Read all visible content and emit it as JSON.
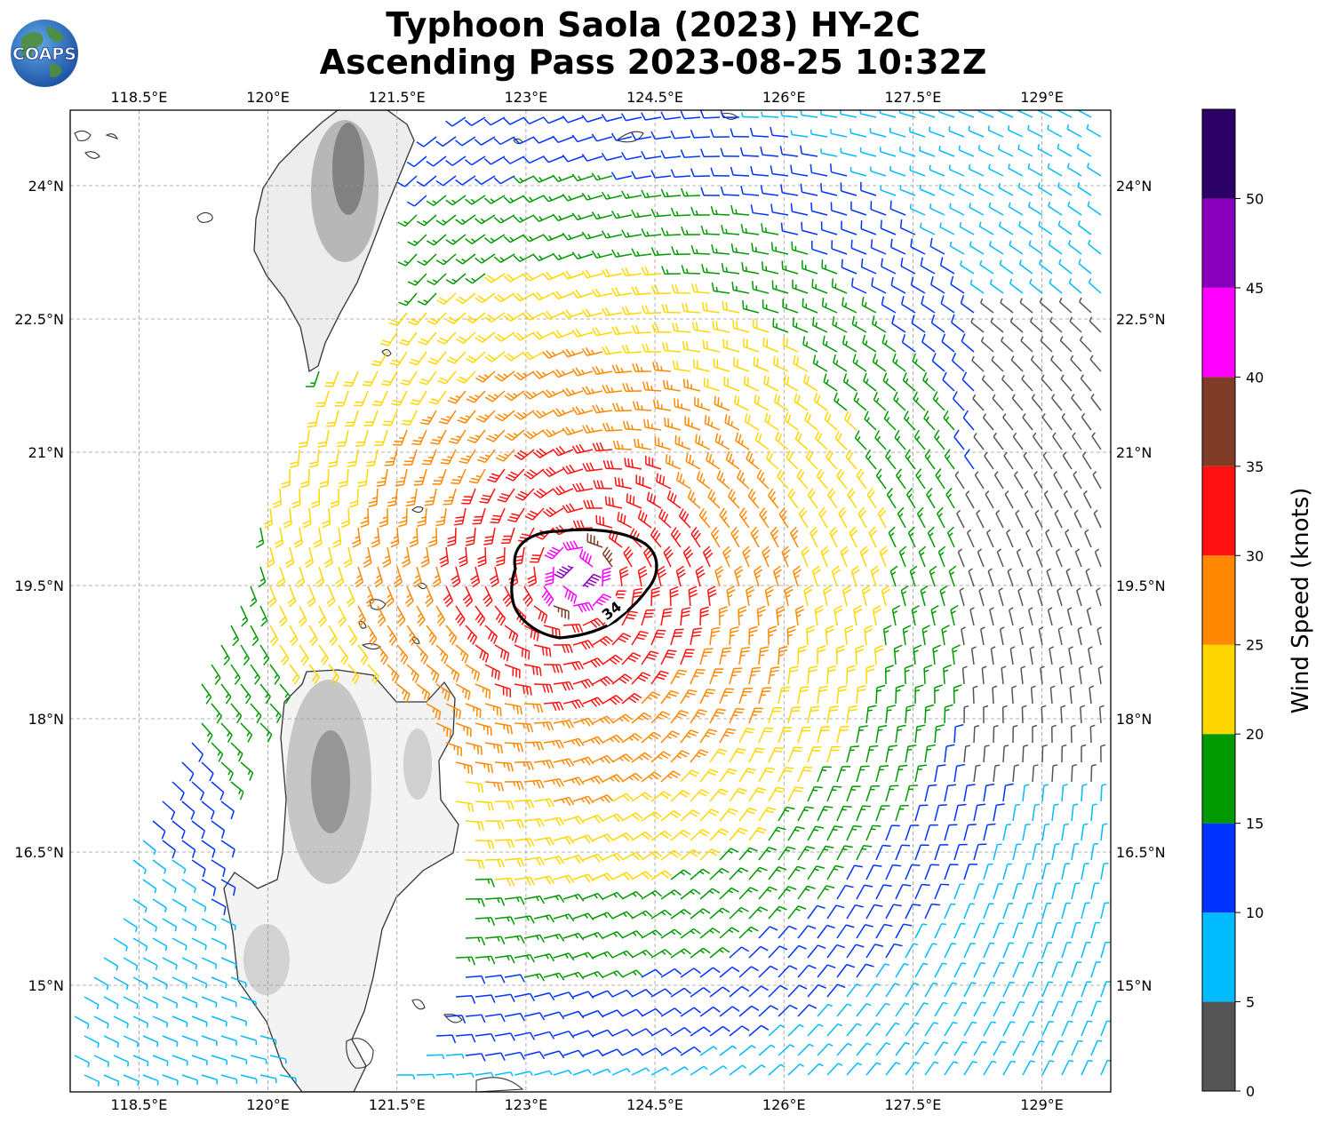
{
  "title": {
    "line1": "Typhoon Saola (2023) HY-2C",
    "line2": "Ascending Pass 2023-08-25 10:32Z"
  },
  "logo": {
    "text": "COAPS",
    "icon": "globe-icon"
  },
  "map": {
    "lon_range": [
      117.7,
      129.8
    ],
    "lat_range": [
      13.8,
      24.85
    ],
    "lon_ticks": [
      "118.5°E",
      "120°E",
      "121.5°E",
      "123°E",
      "124.5°E",
      "126°E",
      "127.5°E",
      "129°E"
    ],
    "lon_tick_values": [
      118.5,
      120,
      121.5,
      123,
      124.5,
      126,
      127.5,
      129
    ],
    "lat_ticks": [
      "24°N",
      "22.5°N",
      "21°N",
      "19.5°N",
      "18°N",
      "16.5°N",
      "15°N"
    ],
    "lat_tick_values": [
      24,
      22.5,
      21,
      19.5,
      18,
      16.5,
      15
    ],
    "gridlines": true,
    "storm_center": {
      "lon": 123.6,
      "lat": 19.6
    },
    "contour": {
      "label": "34",
      "units": "knots"
    },
    "land_masses": [
      "Taiwan",
      "Luzon"
    ]
  },
  "colorbar": {
    "label": "Wind Speed (knots)",
    "ticks": [
      "0",
      "5",
      "10",
      "15",
      "20",
      "25",
      "30",
      "35",
      "40",
      "45",
      "50"
    ],
    "bins": [
      {
        "min": 0,
        "max": 5,
        "color": "#555555"
      },
      {
        "min": 5,
        "max": 10,
        "color": "#00bbff"
      },
      {
        "min": 10,
        "max": 15,
        "color": "#0033ff"
      },
      {
        "min": 15,
        "max": 20,
        "color": "#009900"
      },
      {
        "min": 20,
        "max": 25,
        "color": "#ffd700"
      },
      {
        "min": 25,
        "max": 30,
        "color": "#ff8800"
      },
      {
        "min": 30,
        "max": 35,
        "color": "#ff1111"
      },
      {
        "min": 35,
        "max": 40,
        "color": "#7f3b26"
      },
      {
        "min": 40,
        "max": 45,
        "color": "#ff00ff"
      },
      {
        "min": 45,
        "max": 50,
        "color": "#8800bb"
      },
      {
        "min": 50,
        "max": 55,
        "color": "#2a0066"
      }
    ]
  }
}
